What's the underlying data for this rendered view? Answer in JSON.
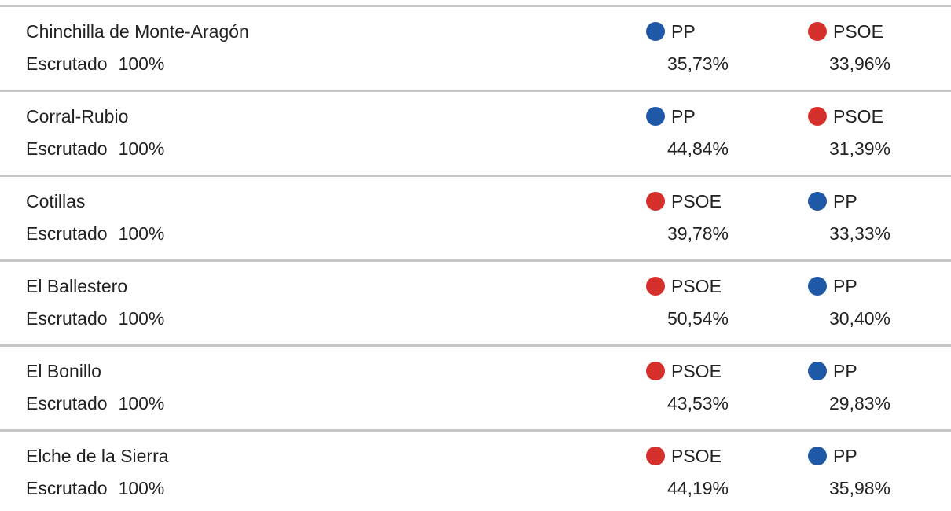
{
  "colors": {
    "PP": "#1f58a6",
    "PSOE": "#d5302c"
  },
  "rows": [
    {
      "name": "Chinchilla de Monte-Aragón",
      "status_label": "Escrutado",
      "status_pct": "100%",
      "p1": {
        "party": "PP",
        "pct": "35,73%"
      },
      "p2": {
        "party": "PSOE",
        "pct": "33,96%"
      }
    },
    {
      "name": "Corral-Rubio",
      "status_label": "Escrutado",
      "status_pct": "100%",
      "p1": {
        "party": "PP",
        "pct": "44,84%"
      },
      "p2": {
        "party": "PSOE",
        "pct": "31,39%"
      }
    },
    {
      "name": "Cotillas",
      "status_label": "Escrutado",
      "status_pct": "100%",
      "p1": {
        "party": "PSOE",
        "pct": "39,78%"
      },
      "p2": {
        "party": "PP",
        "pct": "33,33%"
      }
    },
    {
      "name": "El Ballestero",
      "status_label": "Escrutado",
      "status_pct": "100%",
      "p1": {
        "party": "PSOE",
        "pct": "50,54%"
      },
      "p2": {
        "party": "PP",
        "pct": "30,40%"
      }
    },
    {
      "name": "El Bonillo",
      "status_label": "Escrutado",
      "status_pct": "100%",
      "p1": {
        "party": "PSOE",
        "pct": "43,53%"
      },
      "p2": {
        "party": "PP",
        "pct": "29,83%"
      }
    },
    {
      "name": "Elche de la Sierra",
      "status_label": "Escrutado",
      "status_pct": "100%",
      "p1": {
        "party": "PSOE",
        "pct": "44,19%"
      },
      "p2": {
        "party": "PP",
        "pct": "35,98%"
      }
    }
  ]
}
